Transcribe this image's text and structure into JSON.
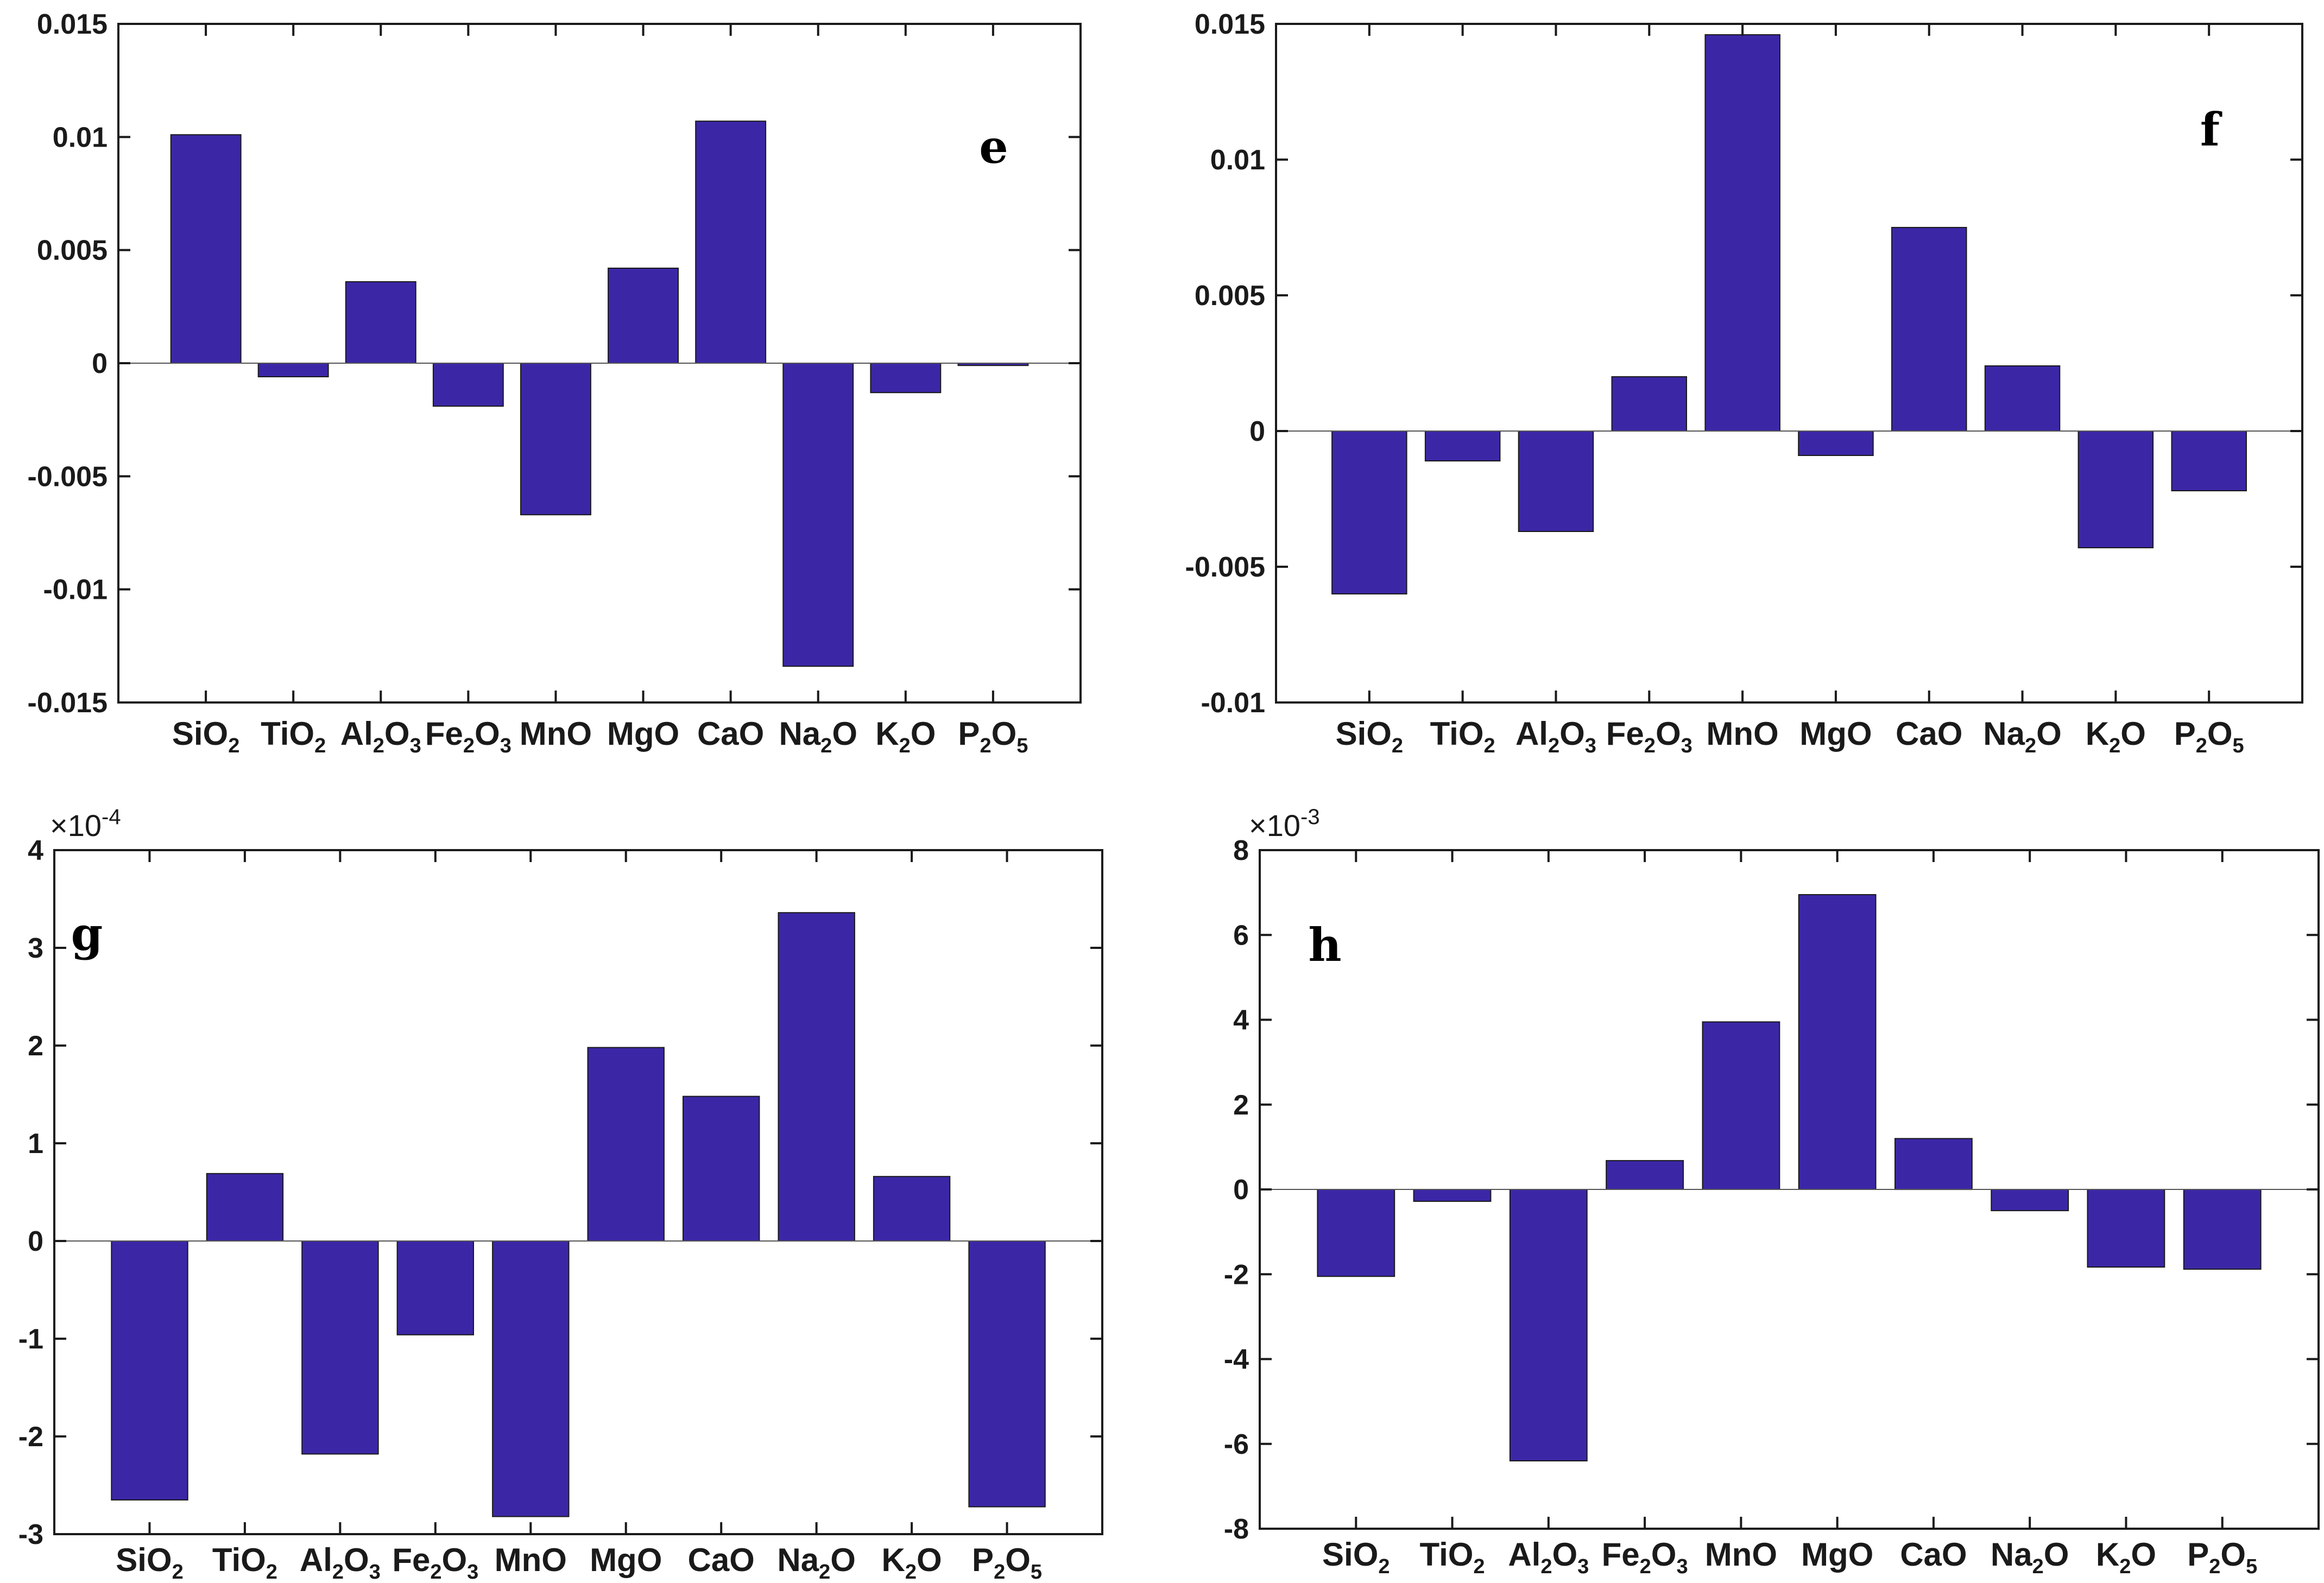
{
  "style": {
    "bar_color": "#3b27a6",
    "bar_edge": "#1a1a1a",
    "axis_color": "#1a1a1a",
    "background": "#ffffff"
  },
  "chart_data": [
    {
      "type": "bar",
      "panel_label": "e",
      "categories": [
        "SiO2",
        "TiO2",
        "Al2O3",
        "Fe2O3",
        "MnO",
        "MgO",
        "CaO",
        "Na2O",
        "K2O",
        "P2O5"
      ],
      "values": [
        0.0101,
        -0.0006,
        0.0036,
        -0.0019,
        -0.0067,
        0.0042,
        0.0107,
        -0.0134,
        -0.0013,
        -0.0001
      ],
      "yticks": [
        -0.015,
        -0.01,
        -0.005,
        0,
        0.005,
        0.01,
        0.015
      ],
      "ytick_labels": [
        "-0.015",
        "-0.01",
        "-0.005",
        "0",
        "0.005",
        "0.01",
        "0.015"
      ],
      "ylim": [
        -0.015,
        0.015
      ],
      "multiplier": "",
      "xlabel": "",
      "ylabel": "",
      "title": ""
    },
    {
      "type": "bar",
      "panel_label": "f",
      "categories": [
        "SiO2",
        "TiO2",
        "Al2O3",
        "Fe2O3",
        "MnO",
        "MgO",
        "CaO",
        "Na2O",
        "K2O",
        "P2O5"
      ],
      "values": [
        -0.006,
        -0.0011,
        -0.0037,
        0.002,
        0.0146,
        -0.0009,
        0.0075,
        0.0024,
        -0.0043,
        -0.0022
      ],
      "yticks": [
        -0.01,
        -0.005,
        0,
        0.005,
        0.01,
        0.015
      ],
      "ytick_labels": [
        "-0.01",
        "-0.005",
        "0",
        "0.005",
        "0.01",
        "0.015"
      ],
      "ylim": [
        -0.01,
        0.015
      ],
      "multiplier": "",
      "xlabel": "",
      "ylabel": "",
      "title": ""
    },
    {
      "type": "bar",
      "panel_label": "g",
      "categories": [
        "SiO2",
        "TiO2",
        "Al2O3",
        "Fe2O3",
        "MnO",
        "MgO",
        "CaO",
        "Na2O",
        "K2O",
        "P2O5"
      ],
      "values": [
        -2.65,
        0.69,
        -2.18,
        -0.96,
        -2.82,
        1.98,
        1.48,
        3.36,
        0.66,
        -2.72
      ],
      "yticks": [
        -3,
        -2,
        -1,
        0,
        1,
        2,
        3,
        4
      ],
      "ytick_labels": [
        "-3",
        "-2",
        "-1",
        "0",
        "1",
        "2",
        "3",
        "4"
      ],
      "ylim": [
        -3,
        4
      ],
      "multiplier": "×10",
      "multiplier_exp": "-4",
      "xlabel": "",
      "ylabel": "",
      "title": ""
    },
    {
      "type": "bar",
      "panel_label": "h",
      "categories": [
        "SiO2",
        "TiO2",
        "Al2O3",
        "Fe2O3",
        "MnO",
        "MgO",
        "CaO",
        "Na2O",
        "K2O",
        "P2O5"
      ],
      "values": [
        -2.05,
        -0.28,
        -6.4,
        0.68,
        3.95,
        6.95,
        1.2,
        -0.5,
        -1.83,
        -1.88
      ],
      "yticks": [
        -8,
        -6,
        -4,
        -2,
        0,
        2,
        4,
        6,
        8
      ],
      "ytick_labels": [
        "-8",
        "-6",
        "-4",
        "-2",
        "0",
        "2",
        "4",
        "6",
        "8"
      ],
      "ylim": [
        -8,
        8
      ],
      "multiplier": "×10",
      "multiplier_exp": "-3",
      "xlabel": "",
      "ylabel": "",
      "title": ""
    }
  ]
}
